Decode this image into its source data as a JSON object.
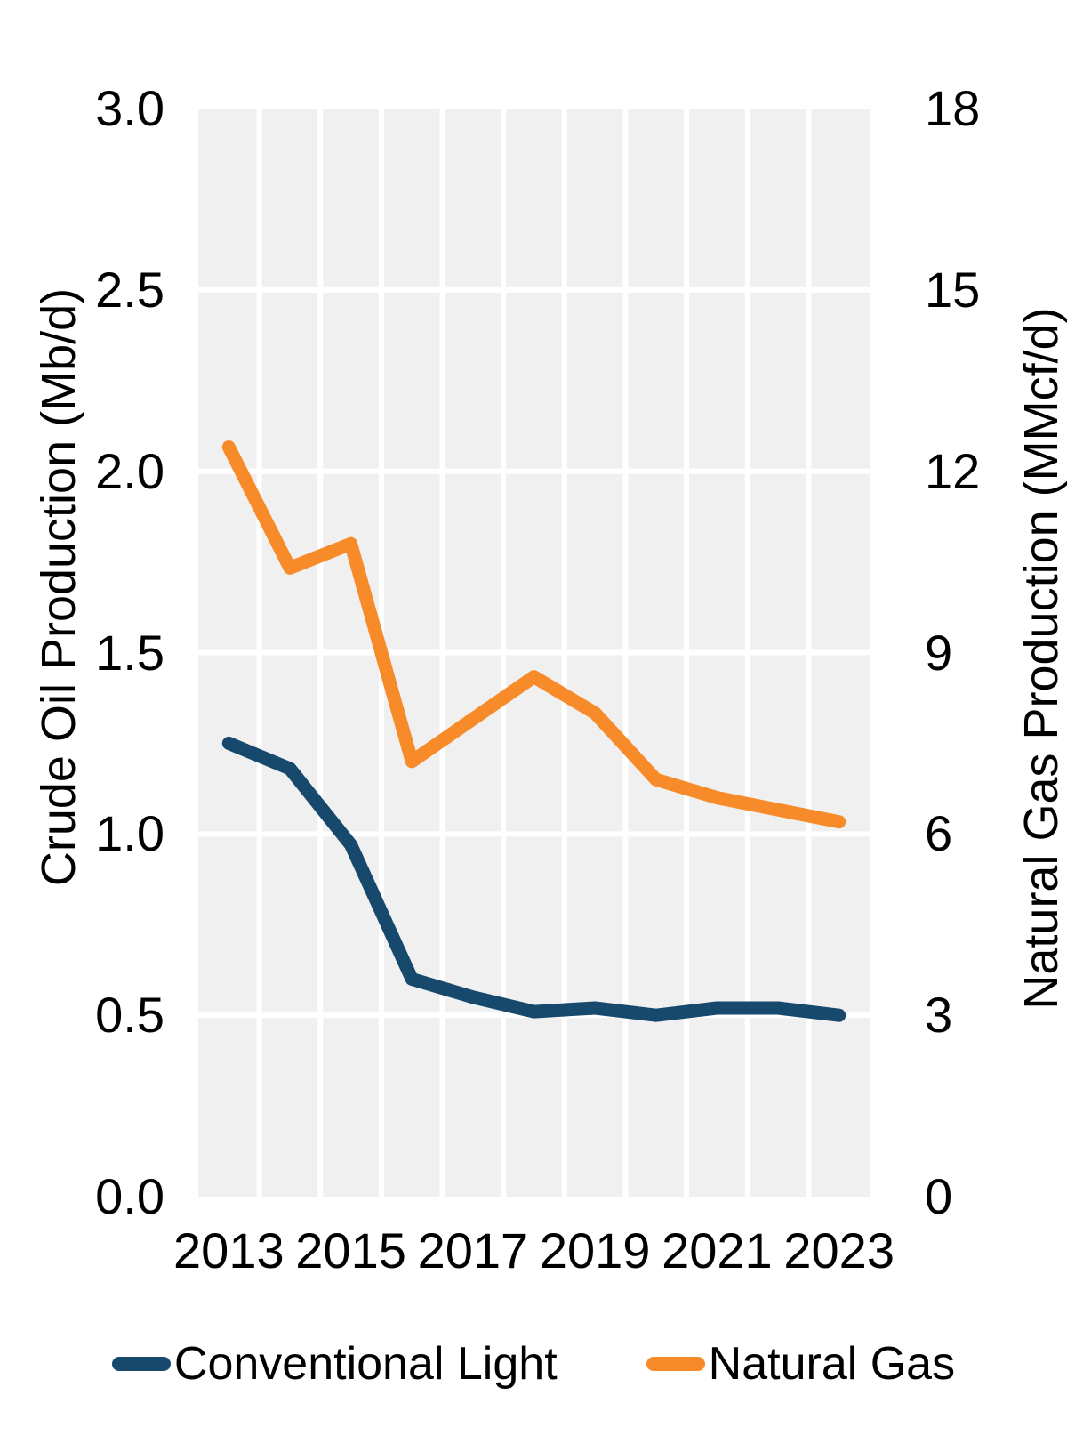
{
  "chart_data": {
    "type": "line",
    "title": "",
    "x": [
      2013,
      2014,
      2015,
      2016,
      2017,
      2018,
      2019,
      2020,
      2021,
      2022,
      2023
    ],
    "x_tick_labels": [
      "2013",
      "2015",
      "2017",
      "2019",
      "2021",
      "2023"
    ],
    "left_axis": {
      "label": "Crude Oil Production (Mb/d)",
      "range": [
        0.0,
        3.0
      ],
      "tick_labels": [
        "3.0",
        "2.5",
        "2.0",
        "1.5",
        "1.0",
        "0.5",
        "0.0"
      ]
    },
    "right_axis": {
      "label": "Natural Gas Production (MMcf/d)",
      "range": [
        0,
        18
      ],
      "tick_labels": [
        "18",
        "15",
        "12",
        "9",
        "6",
        "3",
        "0"
      ]
    },
    "series": [
      {
        "name": "Conventional Light",
        "axis": "left",
        "color": "#17496D",
        "values": [
          1.25,
          1.18,
          0.97,
          0.6,
          0.55,
          0.51,
          0.52,
          0.5,
          0.52,
          0.52,
          0.5
        ]
      },
      {
        "name": "Natural Gas",
        "axis": "right",
        "color": "#F78B2A",
        "values": [
          12.4,
          10.4,
          10.8,
          7.2,
          7.9,
          8.6,
          8.0,
          6.9,
          6.6,
          6.4,
          6.2
        ]
      }
    ],
    "grid": true,
    "legend_position": "bottom",
    "plot_background": "#F0F0F0",
    "gridline_color": "#FFFFFF",
    "line_width": 15
  }
}
